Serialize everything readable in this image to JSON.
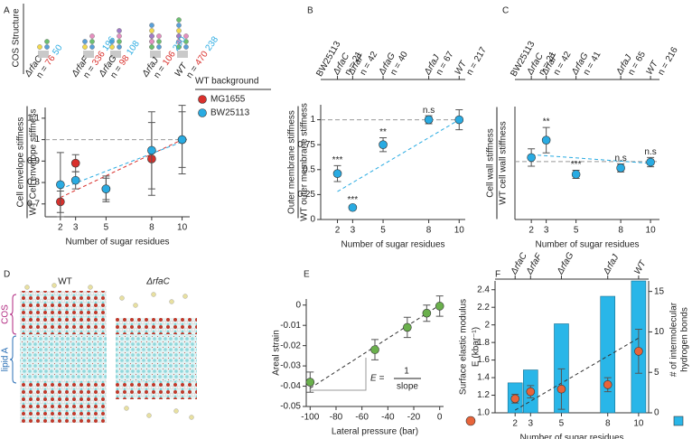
{
  "chart_data": [
    {
      "panel": "A",
      "type": "scatter",
      "header": "COS Structure",
      "strains": [
        "ΔrfaC",
        "ΔrfaF",
        "ΔrfaG",
        "ΔrfaJ",
        "WT"
      ],
      "n_prefix": "n =",
      "x": [
        2,
        3,
        5,
        8,
        10
      ],
      "xlim": [
        1,
        10.5
      ],
      "xticks": [
        2,
        3,
        5,
        8,
        10
      ],
      "ylim": [
        0.64,
        1.15
      ],
      "yticks": [
        0.7,
        0.8,
        0.9,
        1,
        1.1
      ],
      "reference_line": 1,
      "xlabel": "Number of sugar residues",
      "ylabel": [
        "Cell envelope stiffness",
        "WT Cell envelope stiffness"
      ],
      "legend_title": "WT background",
      "series": [
        {
          "name": "MG1655",
          "color": "#d9302c",
          "values": [
            0.71,
            0.89,
            0.77,
            0.91,
            1.0
          ],
          "errors": [
            0.05,
            0.04,
            0.05,
            0.17,
            0.16
          ],
          "n": [
            76,
            336,
            98,
            106,
            470
          ],
          "fit": {
            "x": [
              2,
              10
            ],
            "y": [
              0.73,
              1.0
            ]
          }
        },
        {
          "name": "BW25113",
          "color": "#29abe2",
          "values": [
            0.79,
            0.81,
            0.77,
            0.95,
            1.0
          ],
          "errors": [
            0.15,
            0.04,
            0.06,
            0.18,
            0.13
          ],
          "n": [
            50,
            196,
            108,
            230,
            238
          ],
          "fit": {
            "x": [
              2,
              10
            ],
            "y": [
              0.77,
              0.99
            ]
          }
        }
      ]
    },
    {
      "panel": "B",
      "type": "scatter",
      "reference_strain": "BW25113",
      "strains": [
        "ΔrfaC",
        "ΔrfaF",
        "ΔrfaG",
        "ΔrfaJ",
        "WT"
      ],
      "n_prefix": "n =",
      "n": [
        21,
        42,
        40,
        67,
        217
      ],
      "x": [
        2,
        3,
        5,
        8,
        10
      ],
      "xlim": [
        0.9,
        10.4
      ],
      "xticks": [
        2,
        3,
        5,
        8,
        10
      ],
      "ylim": [
        0,
        1.15
      ],
      "yticks": [
        0,
        0.25,
        0.5,
        0.75,
        1
      ],
      "reference_line": 1,
      "xlabel": "Number of sugar residues",
      "ylabel": [
        "Outer membrane stiffness",
        "WT outer membrane stiffness"
      ],
      "series": [
        {
          "color": "#29abe2",
          "values": [
            0.46,
            0.12,
            0.75,
            1.0,
            1.0
          ],
          "errors": [
            0.08,
            0.02,
            0.07,
            0.04,
            0.1
          ],
          "significance": [
            "***",
            "***",
            "**",
            "n.s",
            null
          ],
          "fit": {
            "x": [
              2,
              10
            ],
            "y": [
              0.28,
              1.0
            ]
          }
        }
      ]
    },
    {
      "panel": "C",
      "type": "scatter",
      "reference_strain": "BW25113",
      "strains": [
        "ΔrfaC",
        "ΔrfaF",
        "ΔrfaG",
        "ΔrfaJ",
        "WT"
      ],
      "n_prefix": "n =",
      "n": [
        21,
        42,
        41,
        65,
        216
      ],
      "x": [
        2,
        3,
        5,
        8,
        10
      ],
      "xlim": [
        0.9,
        10.6
      ],
      "xticks": [
        2,
        3,
        5,
        8,
        10
      ],
      "ylim": [
        0,
        1.95
      ],
      "reference_line": 1,
      "xlabel": "Number of sugar residues",
      "ylabel": [
        "Cell wall stiffness",
        "WT cell wall stiffness"
      ],
      "series": [
        {
          "color": "#29abe2",
          "values": [
            1.07,
            1.37,
            0.78,
            0.89,
            0.99
          ],
          "errors": [
            0.15,
            0.22,
            0.07,
            0.07,
            0.08
          ],
          "significance": [
            null,
            "**",
            "***",
            "n.s",
            "n.s"
          ],
          "fit": {
            "x": [
              2,
              10
            ],
            "y": [
              1.12,
              0.97
            ]
          }
        }
      ]
    },
    {
      "panel": "D",
      "type": "image",
      "labels": [
        "WT",
        "ΔrfaC"
      ],
      "layer_labels": [
        "COS",
        "lipid A"
      ]
    },
    {
      "panel": "E",
      "type": "scatter",
      "x": [
        -100,
        -50,
        -25,
        -10,
        0
      ],
      "xlim": [
        -103,
        3
      ],
      "xticks": [
        -100,
        -80,
        -60,
        -40,
        -20,
        0
      ],
      "ylim": [
        -0.05,
        0.003
      ],
      "yticks": [
        0,
        -0.01,
        -0.02,
        -0.03,
        -0.04,
        -0.05
      ],
      "xlabel": "Lateral pressure (bar)",
      "ylabel": [
        "Areal strain"
      ],
      "annotation": {
        "lhs": "E =",
        "numerator": "1",
        "denominator": "slope"
      },
      "series": [
        {
          "color": "#6ab04c",
          "values": [
            -0.038,
            -0.022,
            -0.011,
            -0.004,
            -0.0005
          ],
          "errors": [
            0.005,
            0.005,
            0.005,
            0.004,
            0.005
          ],
          "fit": {
            "x": [
              -100,
              0
            ],
            "y": [
              -0.041,
              0
            ]
          }
        }
      ]
    },
    {
      "panel": "F",
      "type": "bar",
      "strains": [
        "ΔrfaC",
        "ΔrfaF",
        "ΔrfaG",
        "ΔrfaJ",
        "WT"
      ],
      "x": [
        2,
        3,
        5,
        8,
        10
      ],
      "xlim": [
        0.7,
        10.65
      ],
      "xticks": [
        2,
        3,
        5,
        8,
        10
      ],
      "ylim": [
        1,
        2.5
      ],
      "yticks": [
        {
          "value": 1,
          "label": "1.0"
        },
        1.2,
        1.4,
        1.6,
        1.8,
        2,
        2.2,
        2.4
      ],
      "y2lim": [
        0,
        16.3
      ],
      "y2ticks": [
        0,
        5,
        10,
        15
      ],
      "xlabel": "Number of sugar residues",
      "ylabel": [
        "Surface elastic modulus",
        "E (kbar⁻¹)"
      ],
      "y2label": [
        "# of intermolecular",
        "hydrogen bonds"
      ],
      "series": [
        {
          "kind": "bar",
          "axis": "y2",
          "color": "#29b6e8",
          "values": [
            3.7,
            5.3,
            11.0,
            14.4,
            16.3
          ]
        },
        {
          "color": "#e8643a",
          "values": [
            1.16,
            1.24,
            1.27,
            1.32,
            1.7
          ],
          "errors": [
            0.05,
            0.07,
            0.23,
            0.08,
            0.25
          ],
          "fit": {
            "x": [
              2,
              10
            ],
            "y": [
              1.03,
              1.85
            ]
          }
        }
      ]
    }
  ]
}
